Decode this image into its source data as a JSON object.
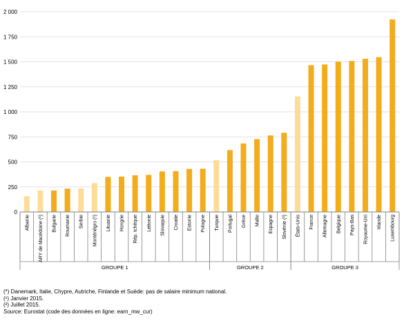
{
  "chart_data": {
    "type": "bar",
    "categories": [
      "Albanie",
      "ARY de Macédoine (¹)",
      "Bulgarie",
      "Roumanie",
      "Serbie",
      "Monténégro (¹)",
      "Lituanie",
      "Hongrie",
      "Rép. tchèque",
      "Lettonie",
      "Slovaquie",
      "Croatie",
      "Estonie",
      "Pologne",
      "Turquie",
      "Portugal",
      "Grèce",
      "Malte",
      "Espagne",
      "Slovénie (²)",
      "États-Unis",
      "France",
      "Allemagne",
      "Belgique",
      "Pays-Bas",
      "Royaume-Uni",
      "Irlande",
      "Luxembourg"
    ],
    "values": [
      157,
      214,
      214,
      233,
      235,
      288,
      350,
      353,
      366,
      370,
      405,
      408,
      430,
      431,
      517,
      618,
      684,
      728,
      764,
      791,
      1154,
      1466,
      1473,
      1502,
      1508,
      1530,
      1546,
      1923
    ],
    "highlight": [
      true,
      true,
      false,
      false,
      true,
      true,
      false,
      false,
      false,
      false,
      false,
      false,
      false,
      false,
      true,
      false,
      false,
      false,
      false,
      false,
      true,
      false,
      false,
      false,
      false,
      false,
      false,
      false
    ],
    "groups": [
      {
        "label": "GROUPE 1",
        "start": 0,
        "end": 13
      },
      {
        "label": "GROUPE 2",
        "start": 14,
        "end": 19
      },
      {
        "label": "GROUPE 3",
        "start": 20,
        "end": 27
      }
    ],
    "yticks": [
      "0",
      "250",
      "500",
      "750",
      "1 000",
      "1 250",
      "1 500",
      "1 750",
      "2 000"
    ],
    "ylim": [
      0,
      2000
    ],
    "grid": true,
    "colors": {
      "main": "#f2ac1c",
      "highlight": "#fbdd97",
      "grid": "#d9d9d9",
      "axis": "#808080"
    }
  },
  "footnotes": {
    "note1": "(*) Danemark, Italie, Chypre, Autriche, Finlande et Suède: pas de salaire minimum national.",
    "note2": "(¹) Janvier 2015.",
    "note3": "(²) Juillet 2015.",
    "source_label": "Source:",
    "source_text": " Eurostat (code des données en ligne: earn_mw_cur)"
  }
}
